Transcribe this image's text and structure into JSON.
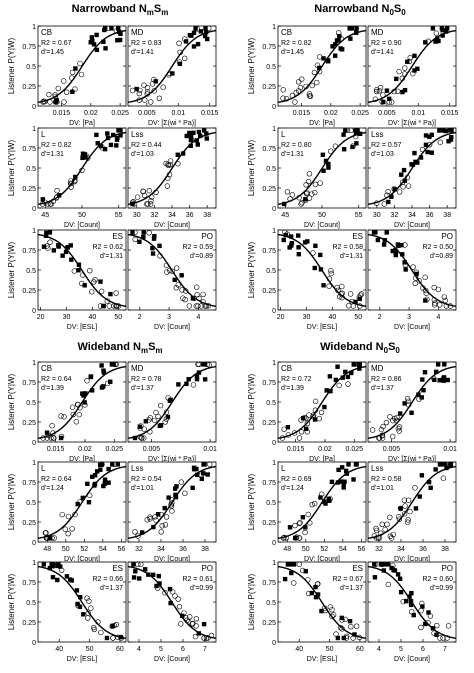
{
  "figure": {
    "blocks": [
      {
        "id": "nb-mm",
        "title_parts": [
          {
            "t": "Narrowband N",
            "sub": false
          },
          {
            "t": "m",
            "sub": true
          },
          {
            "t": "S",
            "sub": false
          },
          {
            "t": "m",
            "sub": true
          }
        ]
      },
      {
        "id": "nb-00",
        "title_parts": [
          {
            "t": "Narrowband N",
            "sub": false
          },
          {
            "t": "0",
            "sub": true
          },
          {
            "t": "S",
            "sub": false
          },
          {
            "t": "0",
            "sub": true
          }
        ]
      },
      {
        "id": "wb-mm",
        "title_parts": [
          {
            "t": "Wideband N",
            "sub": false
          },
          {
            "t": "m",
            "sub": true
          },
          {
            "t": "S",
            "sub": false
          },
          {
            "t": "m",
            "sub": true
          }
        ]
      },
      {
        "id": "wb-00",
        "title_parts": [
          {
            "t": "Wideband N",
            "sub": false
          },
          {
            "t": "0",
            "sub": true
          },
          {
            "t": "S",
            "sub": false
          },
          {
            "t": "0",
            "sub": true
          }
        ]
      }
    ],
    "ylabel": "Listener P(Y|W)",
    "ytick_labels": [
      "0",
      "0.25",
      "0.5",
      "0.75",
      "1"
    ]
  },
  "chart_data": {
    "type": "scatter",
    "ylim": [
      0,
      1
    ],
    "markers": {
      "filled": "filled square",
      "open": "open circle"
    },
    "panels": [
      {
        "block": "nb-mm",
        "row": 0,
        "col": 0,
        "label": "CB",
        "stats": [
          "R2 = 0.67",
          "d'=1.45"
        ],
        "xlabel": "DV: [Pa]",
        "xticks": [
          "0.015",
          "0.02",
          "0.025"
        ],
        "xlim": [
          0.011,
          0.026
        ],
        "xtick_values": [
          0.015,
          0.02,
          0.025
        ],
        "curve": "rising"
      },
      {
        "block": "nb-mm",
        "row": 0,
        "col": 1,
        "label": "MD",
        "stats": [
          "R2 = 0.83",
          "d'=1.41"
        ],
        "xlabel": "DV: [Σ(wi * Pa)]",
        "xticks": [
          "0.005",
          "0.01",
          "0.015"
        ],
        "xlim": [
          0.002,
          0.016
        ],
        "xtick_values": [
          0.005,
          0.01,
          0.015
        ],
        "curve": "rising"
      },
      {
        "block": "nb-mm",
        "row": 1,
        "col": 0,
        "label": "L",
        "stats": [
          "R2 = 0.82",
          "d'=1.31"
        ],
        "xlabel": "DV: [Count]",
        "xticks": [
          "45",
          "50",
          "55"
        ],
        "xlim": [
          44,
          56
        ],
        "xtick_values": [
          45,
          50,
          55
        ],
        "curve": "rising"
      },
      {
        "block": "nb-mm",
        "row": 1,
        "col": 1,
        "label": "Lss",
        "stats": [
          "R2 = 0.44",
          "d'=1.03"
        ],
        "xlabel": "DV: [Count]",
        "xticks": [
          "30",
          "32",
          "34",
          "36",
          "38"
        ],
        "xlim": [
          29,
          39
        ],
        "xtick_values": [
          30,
          32,
          34,
          36,
          38
        ],
        "curve": "rising"
      },
      {
        "block": "nb-mm",
        "row": 2,
        "col": 0,
        "label": "ES",
        "stats": [
          "R2 = 0.62",
          "d'=1.31"
        ],
        "xlabel": "DV: [ESL]",
        "xticks": [
          "20",
          "30",
          "40",
          "50"
        ],
        "xlim": [
          19,
          53
        ],
        "xtick_values": [
          20,
          30,
          40,
          50
        ],
        "curve": "falling"
      },
      {
        "block": "nb-mm",
        "row": 2,
        "col": 1,
        "label": "PO",
        "stats": [
          "R2 = 0.59",
          "d'=0.89"
        ],
        "xlabel": "DV: [Count]",
        "xticks": [
          "2",
          "3",
          "4"
        ],
        "xlim": [
          1.6,
          4.6
        ],
        "xtick_values": [
          2,
          3,
          4
        ],
        "curve": "falling"
      },
      {
        "block": "nb-00",
        "row": 0,
        "col": 0,
        "label": "CB",
        "stats": [
          "R2 = 0.82",
          "d'=1.45"
        ],
        "xlabel": "DV: [Pa]",
        "xticks": [
          "0.015",
          "0.02",
          "0.025"
        ],
        "xlim": [
          0.011,
          0.026
        ],
        "xtick_values": [
          0.015,
          0.02,
          0.025
        ],
        "curve": "rising"
      },
      {
        "block": "nb-00",
        "row": 0,
        "col": 1,
        "label": "MD",
        "stats": [
          "R2 = 0.90",
          "d'=1.41"
        ],
        "xlabel": "DV: [Σ(wi * Pa)]",
        "xticks": [
          "0.005",
          "0.01",
          "0.015"
        ],
        "xlim": [
          0.002,
          0.016
        ],
        "xtick_values": [
          0.005,
          0.01,
          0.015
        ],
        "curve": "rising"
      },
      {
        "block": "nb-00",
        "row": 1,
        "col": 0,
        "label": "L",
        "stats": [
          "R2 = 0.80",
          "d'=1.31"
        ],
        "xlabel": "DV: [Count]",
        "xticks": [
          "45",
          "50",
          "55"
        ],
        "xlim": [
          44,
          56
        ],
        "xtick_values": [
          45,
          50,
          55
        ],
        "curve": "rising"
      },
      {
        "block": "nb-00",
        "row": 1,
        "col": 1,
        "label": "Lss",
        "stats": [
          "R2 = 0.57",
          "d'=1.03"
        ],
        "xlabel": "DV: [Count]",
        "xticks": [
          "30",
          "32",
          "34",
          "36",
          "38"
        ],
        "xlim": [
          29,
          39
        ],
        "xtick_values": [
          30,
          32,
          34,
          36,
          38
        ],
        "curve": "rising"
      },
      {
        "block": "nb-00",
        "row": 2,
        "col": 0,
        "label": "ES",
        "stats": [
          "R2 = 0.58",
          "d'=1.31"
        ],
        "xlabel": "DV: [ESL]",
        "xticks": [
          "20",
          "30",
          "40",
          "50"
        ],
        "xlim": [
          19,
          53
        ],
        "xtick_values": [
          20,
          30,
          40,
          50
        ],
        "curve": "falling"
      },
      {
        "block": "nb-00",
        "row": 2,
        "col": 1,
        "label": "PO",
        "stats": [
          "R2 = 0.50",
          "d'=0.89"
        ],
        "xlabel": "DV: [Count]",
        "xticks": [
          "2",
          "3",
          "4"
        ],
        "xlim": [
          1.6,
          4.6
        ],
        "xtick_values": [
          2,
          3,
          4
        ],
        "curve": "falling"
      },
      {
        "block": "wb-mm",
        "row": 0,
        "col": 0,
        "label": "CB",
        "stats": [
          "R2 = 0.64",
          "d'=1.39"
        ],
        "xlabel": "DV: [Pa]",
        "xticks": [
          "0.015",
          "0.02",
          "0.025"
        ],
        "xlim": [
          0.012,
          0.027
        ],
        "xtick_values": [
          0.015,
          0.02,
          0.025
        ],
        "curve": "rising"
      },
      {
        "block": "wb-mm",
        "row": 0,
        "col": 1,
        "label": "MD",
        "stats": [
          "R2 = 0.78",
          "d'=1.37"
        ],
        "xlabel": "DV: [Σ(wi * Pa)]",
        "xticks": [
          "0.005",
          "0.01"
        ],
        "xlim": [
          0.003,
          0.0105
        ],
        "xtick_values": [
          0.005,
          0.01
        ],
        "curve": "rising"
      },
      {
        "block": "wb-mm",
        "row": 1,
        "col": 0,
        "label": "L",
        "stats": [
          "R2 = 0.64",
          "d'=1.24"
        ],
        "xlabel": "DV: [Count]",
        "xticks": [
          "48",
          "50",
          "52",
          "54",
          "56"
        ],
        "xlim": [
          47,
          56.5
        ],
        "xtick_values": [
          48,
          50,
          52,
          54,
          56
        ],
        "curve": "rising"
      },
      {
        "block": "wb-mm",
        "row": 1,
        "col": 1,
        "label": "Lss",
        "stats": [
          "R2 = 0.54",
          "d'=1.01"
        ],
        "xlabel": "DV: [Count]",
        "xticks": [
          "32",
          "34",
          "36",
          "38"
        ],
        "xlim": [
          31,
          39
        ],
        "xtick_values": [
          32,
          34,
          36,
          38
        ],
        "curve": "rising"
      },
      {
        "block": "wb-mm",
        "row": 2,
        "col": 0,
        "label": "ES",
        "stats": [
          "R2 = 0.66",
          "d'=1.37"
        ],
        "xlabel": "DV: [ESL]",
        "xticks": [
          "40",
          "50",
          "60"
        ],
        "xlim": [
          33,
          62
        ],
        "xtick_values": [
          40,
          50,
          60
        ],
        "curve": "falling"
      },
      {
        "block": "wb-mm",
        "row": 2,
        "col": 1,
        "label": "PO",
        "stats": [
          "R2 = 0.61",
          "d'=0.99"
        ],
        "xlabel": "DV: [Count]",
        "xticks": [
          "4",
          "5",
          "6",
          "7"
        ],
        "xlim": [
          3.5,
          7.5
        ],
        "xtick_values": [
          4,
          5,
          6,
          7
        ],
        "curve": "falling"
      },
      {
        "block": "wb-00",
        "row": 0,
        "col": 0,
        "label": "CB",
        "stats": [
          "R2 = 0.72",
          "d'=1.39"
        ],
        "xlabel": "DV: [Pa]",
        "xticks": [
          "0.015",
          "0.02",
          "0.025"
        ],
        "xlim": [
          0.012,
          0.027
        ],
        "xtick_values": [
          0.015,
          0.02,
          0.025
        ],
        "curve": "rising"
      },
      {
        "block": "wb-00",
        "row": 0,
        "col": 1,
        "label": "MD",
        "stats": [
          "R2 = 0.86",
          "d'=1.37"
        ],
        "xlabel": "DV: [Σ(wi * Pa)]",
        "xticks": [
          "0.005",
          "0.01"
        ],
        "xlim": [
          0.003,
          0.0105
        ],
        "xtick_values": [
          0.005,
          0.01
        ],
        "curve": "rising"
      },
      {
        "block": "wb-00",
        "row": 1,
        "col": 0,
        "label": "L",
        "stats": [
          "R2 = 0.69",
          "d'=1.24"
        ],
        "xlabel": "DV: [Count]",
        "xticks": [
          "48",
          "50",
          "52",
          "54",
          "56"
        ],
        "xlim": [
          47,
          56.5
        ],
        "xtick_values": [
          48,
          50,
          52,
          54,
          56
        ],
        "curve": "rising"
      },
      {
        "block": "wb-00",
        "row": 1,
        "col": 1,
        "label": "Lss",
        "stats": [
          "R2 = 0.58",
          "d'=1.01"
        ],
        "xlabel": "DV: [Count]",
        "xticks": [
          "32",
          "34",
          "36",
          "38"
        ],
        "xlim": [
          31,
          39
        ],
        "xtick_values": [
          32,
          34,
          36,
          38
        ],
        "curve": "rising"
      },
      {
        "block": "wb-00",
        "row": 2,
        "col": 0,
        "label": "ES",
        "stats": [
          "R2 = 0.67",
          "d'=1.37"
        ],
        "xlabel": "DV: [ESL]",
        "xticks": [
          "40",
          "50",
          "60"
        ],
        "xlim": [
          33,
          62
        ],
        "xtick_values": [
          40,
          50,
          60
        ],
        "curve": "falling"
      },
      {
        "block": "wb-00",
        "row": 2,
        "col": 1,
        "label": "PO",
        "stats": [
          "R2 = 0.60",
          "d'=0.99"
        ],
        "xlabel": "DV: [Count]",
        "xticks": [
          "4",
          "5",
          "6",
          "7"
        ],
        "xlim": [
          3.5,
          7.5
        ],
        "xtick_values": [
          4,
          5,
          6,
          7
        ],
        "curve": "falling"
      }
    ]
  }
}
